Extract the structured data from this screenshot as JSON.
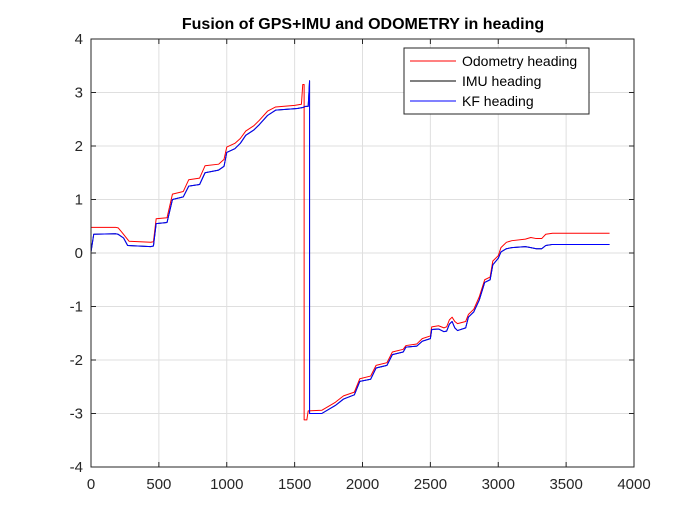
{
  "chart_data": {
    "type": "line",
    "title": "Fusion of GPS+IMU and ODOMETRY in heading",
    "xlabel": "",
    "ylabel": "",
    "xlim": [
      0,
      4000
    ],
    "ylim": [
      -4,
      4
    ],
    "xticks": [
      0,
      500,
      1000,
      1500,
      2000,
      2500,
      3000,
      3500,
      4000
    ],
    "yticks": [
      4,
      3,
      2,
      1,
      0,
      -1,
      -2,
      -3,
      -4
    ],
    "grid": true,
    "legend_position": "top-right",
    "series": [
      {
        "name": "Odometry heading",
        "color": "#ff0000",
        "points": [
          [
            0,
            0.48
          ],
          [
            180,
            0.48
          ],
          [
            200,
            0.47
          ],
          [
            230,
            0.38
          ],
          [
            280,
            0.22
          ],
          [
            440,
            0.2
          ],
          [
            460,
            0.21
          ],
          [
            480,
            0.64
          ],
          [
            560,
            0.66
          ],
          [
            600,
            1.1
          ],
          [
            680,
            1.15
          ],
          [
            720,
            1.37
          ],
          [
            800,
            1.4
          ],
          [
            840,
            1.63
          ],
          [
            940,
            1.66
          ],
          [
            980,
            1.75
          ],
          [
            1000,
            1.98
          ],
          [
            1060,
            2.05
          ],
          [
            1100,
            2.14
          ],
          [
            1140,
            2.28
          ],
          [
            1200,
            2.38
          ],
          [
            1240,
            2.48
          ],
          [
            1300,
            2.65
          ],
          [
            1360,
            2.73
          ],
          [
            1500,
            2.76
          ],
          [
            1550,
            2.78
          ],
          [
            1560,
            3.15
          ],
          [
            1570,
            3.15
          ],
          [
            1570,
            -3.12
          ],
          [
            1590,
            -3.12
          ],
          [
            1600,
            -2.95
          ],
          [
            1700,
            -2.94
          ],
          [
            1800,
            -2.79
          ],
          [
            1860,
            -2.67
          ],
          [
            1940,
            -2.6
          ],
          [
            1980,
            -2.35
          ],
          [
            2060,
            -2.3
          ],
          [
            2100,
            -2.1
          ],
          [
            2180,
            -2.05
          ],
          [
            2220,
            -1.85
          ],
          [
            2300,
            -1.8
          ],
          [
            2320,
            -1.73
          ],
          [
            2400,
            -1.7
          ],
          [
            2440,
            -1.6
          ],
          [
            2500,
            -1.55
          ],
          [
            2510,
            -1.38
          ],
          [
            2560,
            -1.36
          ],
          [
            2600,
            -1.4
          ],
          [
            2620,
            -1.38
          ],
          [
            2640,
            -1.25
          ],
          [
            2660,
            -1.2
          ],
          [
            2680,
            -1.28
          ],
          [
            2700,
            -1.32
          ],
          [
            2760,
            -1.28
          ],
          [
            2780,
            -1.15
          ],
          [
            2820,
            -1.05
          ],
          [
            2860,
            -0.82
          ],
          [
            2900,
            -0.5
          ],
          [
            2940,
            -0.45
          ],
          [
            2960,
            -0.15
          ],
          [
            3000,
            -0.05
          ],
          [
            3020,
            0.1
          ],
          [
            3060,
            0.2
          ],
          [
            3100,
            0.23
          ],
          [
            3200,
            0.26
          ],
          [
            3240,
            0.29
          ],
          [
            3280,
            0.27
          ],
          [
            3320,
            0.27
          ],
          [
            3350,
            0.35
          ],
          [
            3400,
            0.37
          ],
          [
            3820,
            0.37
          ]
        ]
      },
      {
        "name": "IMU heading",
        "color": "#000000",
        "points": [
          [
            0,
            0.02
          ],
          [
            20,
            0.35
          ],
          [
            180,
            0.36
          ],
          [
            200,
            0.35
          ],
          [
            240,
            0.28
          ],
          [
            270,
            0.14
          ],
          [
            440,
            0.12
          ],
          [
            460,
            0.13
          ],
          [
            480,
            0.55
          ],
          [
            560,
            0.57
          ],
          [
            600,
            1.0
          ],
          [
            680,
            1.05
          ],
          [
            720,
            1.25
          ],
          [
            800,
            1.28
          ],
          [
            840,
            1.5
          ],
          [
            940,
            1.55
          ],
          [
            980,
            1.62
          ],
          [
            1000,
            1.88
          ],
          [
            1060,
            1.95
          ],
          [
            1100,
            2.05
          ],
          [
            1140,
            2.2
          ],
          [
            1200,
            2.3
          ],
          [
            1240,
            2.4
          ],
          [
            1300,
            2.57
          ],
          [
            1360,
            2.67
          ],
          [
            1520,
            2.7
          ],
          [
            1560,
            2.72
          ],
          [
            1580,
            2.74
          ],
          [
            1600,
            2.74
          ],
          [
            1610,
            3.22
          ],
          [
            1610,
            -3.0
          ],
          [
            1700,
            -3.0
          ],
          [
            1800,
            -2.85
          ],
          [
            1860,
            -2.73
          ],
          [
            1940,
            -2.65
          ],
          [
            1980,
            -2.4
          ],
          [
            2060,
            -2.36
          ],
          [
            2100,
            -2.15
          ],
          [
            2180,
            -2.1
          ],
          [
            2220,
            -1.9
          ],
          [
            2300,
            -1.85
          ],
          [
            2320,
            -1.76
          ],
          [
            2400,
            -1.74
          ],
          [
            2440,
            -1.65
          ],
          [
            2500,
            -1.6
          ],
          [
            2510,
            -1.43
          ],
          [
            2560,
            -1.42
          ],
          [
            2600,
            -1.47
          ],
          [
            2620,
            -1.46
          ],
          [
            2640,
            -1.33
          ],
          [
            2660,
            -1.28
          ],
          [
            2680,
            -1.4
          ],
          [
            2700,
            -1.45
          ],
          [
            2760,
            -1.4
          ],
          [
            2780,
            -1.2
          ],
          [
            2820,
            -1.1
          ],
          [
            2860,
            -0.88
          ],
          [
            2900,
            -0.55
          ],
          [
            2940,
            -0.5
          ],
          [
            2960,
            -0.22
          ],
          [
            3000,
            -0.1
          ],
          [
            3020,
            0.02
          ],
          [
            3060,
            0.08
          ],
          [
            3100,
            0.1
          ],
          [
            3200,
            0.12
          ],
          [
            3240,
            0.1
          ],
          [
            3280,
            0.08
          ],
          [
            3320,
            0.08
          ],
          [
            3350,
            0.14
          ],
          [
            3400,
            0.16
          ],
          [
            3820,
            0.16
          ]
        ]
      },
      {
        "name": "KF heading",
        "color": "#0000ff",
        "points": [
          [
            0,
            0.02
          ],
          [
            20,
            0.35
          ],
          [
            180,
            0.36
          ],
          [
            200,
            0.35
          ],
          [
            240,
            0.28
          ],
          [
            270,
            0.14
          ],
          [
            440,
            0.12
          ],
          [
            460,
            0.13
          ],
          [
            480,
            0.55
          ],
          [
            560,
            0.57
          ],
          [
            600,
            1.0
          ],
          [
            680,
            1.05
          ],
          [
            720,
            1.25
          ],
          [
            800,
            1.28
          ],
          [
            840,
            1.5
          ],
          [
            940,
            1.55
          ],
          [
            980,
            1.62
          ],
          [
            1000,
            1.88
          ],
          [
            1060,
            1.95
          ],
          [
            1100,
            2.05
          ],
          [
            1140,
            2.2
          ],
          [
            1200,
            2.3
          ],
          [
            1240,
            2.4
          ],
          [
            1300,
            2.57
          ],
          [
            1360,
            2.67
          ],
          [
            1520,
            2.7
          ],
          [
            1560,
            2.72
          ],
          [
            1580,
            2.74
          ],
          [
            1600,
            2.74
          ],
          [
            1610,
            3.22
          ],
          [
            1610,
            -3.0
          ],
          [
            1700,
            -3.0
          ],
          [
            1800,
            -2.85
          ],
          [
            1860,
            -2.73
          ],
          [
            1940,
            -2.65
          ],
          [
            1980,
            -2.4
          ],
          [
            2060,
            -2.36
          ],
          [
            2100,
            -2.15
          ],
          [
            2180,
            -2.1
          ],
          [
            2220,
            -1.9
          ],
          [
            2300,
            -1.85
          ],
          [
            2320,
            -1.76
          ],
          [
            2400,
            -1.74
          ],
          [
            2440,
            -1.65
          ],
          [
            2500,
            -1.6
          ],
          [
            2510,
            -1.43
          ],
          [
            2560,
            -1.42
          ],
          [
            2600,
            -1.47
          ],
          [
            2620,
            -1.46
          ],
          [
            2640,
            -1.33
          ],
          [
            2660,
            -1.28
          ],
          [
            2680,
            -1.4
          ],
          [
            2700,
            -1.45
          ],
          [
            2760,
            -1.4
          ],
          [
            2780,
            -1.2
          ],
          [
            2820,
            -1.1
          ],
          [
            2860,
            -0.88
          ],
          [
            2900,
            -0.55
          ],
          [
            2940,
            -0.5
          ],
          [
            2960,
            -0.22
          ],
          [
            3000,
            -0.1
          ],
          [
            3020,
            0.02
          ],
          [
            3060,
            0.08
          ],
          [
            3100,
            0.1
          ],
          [
            3200,
            0.12
          ],
          [
            3240,
            0.1
          ],
          [
            3280,
            0.08
          ],
          [
            3320,
            0.08
          ],
          [
            3350,
            0.14
          ],
          [
            3400,
            0.16
          ],
          [
            3820,
            0.16
          ]
        ]
      }
    ]
  }
}
